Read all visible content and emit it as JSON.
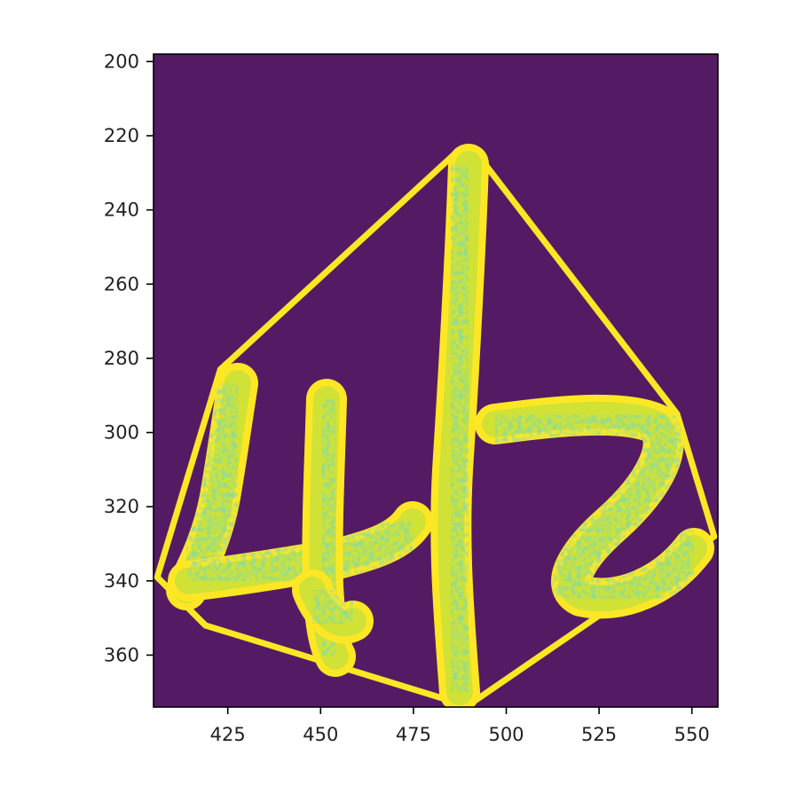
{
  "chart_data": {
    "type": "heatmap",
    "title": "",
    "xlabel": "",
    "ylabel": "",
    "xlim": [
      405,
      557
    ],
    "ylim": [
      374,
      198
    ],
    "y_inverted": true,
    "grid": false,
    "legend": "none",
    "colormap": "viridis",
    "colors": {
      "background": "#541b64",
      "edge": "#fde725",
      "mid": "#c8e03a",
      "low": "#2bb07f"
    },
    "x_ticks": [
      425,
      450,
      475,
      500,
      525,
      550
    ],
    "y_ticks": [
      200,
      220,
      240,
      260,
      280,
      300,
      320,
      340,
      360
    ],
    "x_tick_labels": [
      "425",
      "450",
      "475",
      "500",
      "525",
      "550"
    ],
    "y_tick_labels": [
      "200",
      "220",
      "240",
      "260",
      "280",
      "300",
      "320",
      "340",
      "360"
    ],
    "outline_polygon": [
      [
        486,
        225
      ],
      [
        493,
        226
      ],
      [
        546,
        295
      ],
      [
        556,
        328
      ],
      [
        492,
        372
      ],
      [
        484,
        372
      ],
      [
        419,
        352
      ],
      [
        406,
        339
      ],
      [
        423,
        283
      ]
    ],
    "content_description": "handwritten 4|2 strokes inside a polygon outline"
  }
}
